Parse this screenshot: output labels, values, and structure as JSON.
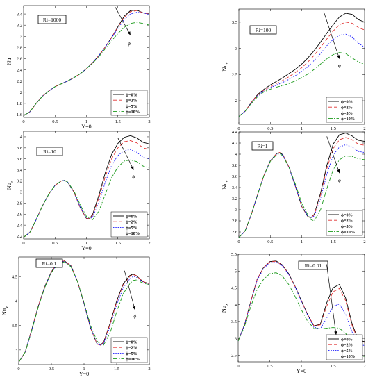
{
  "legend_labels": [
    "ϕ=0%",
    "ϕ=2%",
    "ϕ=5%",
    "ϕ=10%"
  ],
  "arrow_label": "ϕ",
  "series_styles": [
    {
      "color": "#000000",
      "dash": ""
    },
    {
      "color": "#e03030",
      "dash": "5,3"
    },
    {
      "color": "#1a1aff",
      "dash": "1.5,1.8"
    },
    {
      "color": "#1a9a1a",
      "dash": "6,2,1.5,2"
    }
  ],
  "chart_data": [
    {
      "type": "line",
      "title": "Ri=1000",
      "xlabel": "Y=0",
      "ylabel": "Nu",
      "xlim": [
        0,
        2
      ],
      "ylim": [
        1.55,
        3.55
      ],
      "xticks": [
        "0",
        "0.5",
        "1",
        "1.5",
        "2"
      ],
      "yticks": [
        "1.6",
        "1.8",
        "2",
        "2.2",
        "2.4",
        "2.6",
        "2.8",
        "3",
        "3.2",
        "3.4"
      ],
      "x": [
        0,
        0.1,
        0.2,
        0.3,
        0.4,
        0.5,
        0.6,
        0.7,
        0.8,
        0.9,
        1.0,
        1.1,
        1.2,
        1.3,
        1.4,
        1.5,
        1.6,
        1.7,
        1.8,
        1.9,
        2.0
      ],
      "series": [
        {
          "name": "ϕ=0%",
          "values": [
            1.58,
            1.65,
            1.8,
            1.93,
            2.02,
            2.1,
            2.15,
            2.2,
            2.26,
            2.33,
            2.42,
            2.53,
            2.66,
            2.81,
            2.98,
            3.17,
            3.36,
            3.46,
            3.47,
            3.42,
            3.4
          ]
        },
        {
          "name": "ϕ=2%",
          "values": [
            1.58,
            1.65,
            1.8,
            1.93,
            2.02,
            2.1,
            2.15,
            2.2,
            2.26,
            2.33,
            2.42,
            2.53,
            2.66,
            2.81,
            2.98,
            3.16,
            3.34,
            3.44,
            3.46,
            3.42,
            3.4
          ]
        },
        {
          "name": "ϕ=5%",
          "values": [
            1.58,
            1.65,
            1.8,
            1.93,
            2.02,
            2.1,
            2.15,
            2.2,
            2.26,
            2.33,
            2.42,
            2.53,
            2.66,
            2.81,
            2.97,
            3.14,
            3.3,
            3.4,
            3.43,
            3.42,
            3.39
          ]
        },
        {
          "name": "ϕ=10%",
          "values": [
            1.58,
            1.65,
            1.8,
            1.93,
            2.02,
            2.1,
            2.15,
            2.2,
            2.26,
            2.33,
            2.42,
            2.52,
            2.64,
            2.78,
            2.92,
            3.05,
            3.16,
            3.23,
            3.25,
            3.23,
            3.2
          ]
        }
      ],
      "arrow": {
        "from": [
          1.46,
          3.52
        ],
        "to": [
          1.7,
          3.02
        ],
        "label_at": [
          1.68,
          2.88
        ]
      }
    },
    {
      "type": "line",
      "title": "Ri=100",
      "xlabel": "",
      "ylabel": "Nu",
      "ylabel_sub": "x",
      "xlim": [
        0,
        2
      ],
      "ylim": [
        1.55,
        3.75
      ],
      "xticks": [
        "0",
        "0.5",
        "1",
        "1.5",
        "2"
      ],
      "yticks": [
        "2",
        "2.5",
        "3",
        "3.5"
      ],
      "x": [
        0,
        0.1,
        0.2,
        0.3,
        0.4,
        0.5,
        0.6,
        0.7,
        0.8,
        0.9,
        1.0,
        1.1,
        1.2,
        1.3,
        1.4,
        1.5,
        1.6,
        1.7,
        1.8,
        1.9,
        2.0
      ],
      "series": [
        {
          "name": "ϕ=0%",
          "values": [
            1.7,
            1.8,
            1.97,
            2.12,
            2.22,
            2.3,
            2.37,
            2.44,
            2.52,
            2.6,
            2.7,
            2.82,
            2.96,
            3.12,
            3.29,
            3.45,
            3.6,
            3.67,
            3.65,
            3.55,
            3.5
          ]
        },
        {
          "name": "ϕ=2%",
          "values": [
            1.7,
            1.8,
            1.97,
            2.11,
            2.2,
            2.27,
            2.33,
            2.39,
            2.46,
            2.54,
            2.63,
            2.74,
            2.87,
            3.02,
            3.18,
            3.33,
            3.45,
            3.5,
            3.48,
            3.4,
            3.35
          ]
        },
        {
          "name": "ϕ=5%",
          "values": [
            1.7,
            1.8,
            1.96,
            2.1,
            2.19,
            2.25,
            2.3,
            2.35,
            2.41,
            2.48,
            2.56,
            2.65,
            2.77,
            2.9,
            3.05,
            3.17,
            3.25,
            3.27,
            3.22,
            3.1,
            3.02
          ]
        },
        {
          "name": "ϕ=10%",
          "values": [
            1.7,
            1.8,
            1.95,
            2.08,
            2.17,
            2.22,
            2.26,
            2.29,
            2.33,
            2.38,
            2.44,
            2.51,
            2.6,
            2.7,
            2.8,
            2.88,
            2.92,
            2.9,
            2.82,
            2.74,
            2.7
          ]
        }
      ],
      "arrow": {
        "from": [
          1.35,
          3.7
        ],
        "to": [
          1.6,
          2.8
        ],
        "label_at": [
          1.6,
          2.68
        ]
      }
    },
    {
      "type": "line",
      "title": "Ri=10",
      "xlabel": "Y=0",
      "ylabel": "Nu",
      "ylabel_sub": "x",
      "xlim": [
        0,
        2
      ],
      "ylim": [
        2.15,
        4.1
      ],
      "xticks": [
        "0",
        "0.5",
        "1",
        "1.5",
        "2"
      ],
      "yticks": [
        "2.2",
        "2.4",
        "2.6",
        "2.8",
        "3",
        "3.2",
        "3.4",
        "3.6",
        "3.8",
        "4"
      ],
      "x": [
        0,
        0.1,
        0.2,
        0.3,
        0.4,
        0.5,
        0.6,
        0.65,
        0.7,
        0.8,
        0.9,
        1.0,
        1.05,
        1.1,
        1.2,
        1.3,
        1.4,
        1.5,
        1.6,
        1.7,
        1.8,
        1.9,
        2.0
      ],
      "series": [
        {
          "name": "ϕ=0%",
          "values": [
            2.18,
            2.27,
            2.5,
            2.75,
            2.96,
            3.12,
            3.2,
            3.21,
            3.18,
            3.0,
            2.72,
            2.52,
            2.52,
            2.6,
            2.95,
            3.35,
            3.68,
            3.88,
            3.99,
            4.02,
            3.98,
            3.9,
            3.87
          ]
        },
        {
          "name": "ϕ=2%",
          "values": [
            2.18,
            2.27,
            2.5,
            2.75,
            2.96,
            3.12,
            3.2,
            3.21,
            3.18,
            3.0,
            2.72,
            2.52,
            2.52,
            2.58,
            2.9,
            3.28,
            3.6,
            3.8,
            3.91,
            3.93,
            3.89,
            3.8,
            3.77
          ]
        },
        {
          "name": "ϕ=5%",
          "values": [
            2.18,
            2.27,
            2.5,
            2.75,
            2.96,
            3.12,
            3.2,
            3.21,
            3.18,
            3.0,
            2.73,
            2.53,
            2.51,
            2.55,
            2.82,
            3.18,
            3.48,
            3.66,
            3.75,
            3.77,
            3.72,
            3.63,
            3.6
          ]
        },
        {
          "name": "ϕ=10%",
          "values": [
            2.18,
            2.27,
            2.5,
            2.75,
            2.96,
            3.12,
            3.2,
            3.21,
            3.18,
            3.02,
            2.77,
            2.56,
            2.52,
            2.5,
            2.66,
            2.96,
            3.26,
            3.45,
            3.56,
            3.58,
            3.55,
            3.47,
            3.44
          ]
        }
      ],
      "arrow": {
        "from": [
          1.5,
          3.98
        ],
        "to": [
          1.75,
          3.4
        ],
        "label_at": [
          1.75,
          3.28
        ]
      }
    },
    {
      "type": "line",
      "title": "Ri=1",
      "xlabel": "",
      "ylabel": "Nu",
      "ylabel_sub": "x",
      "xlim": [
        0,
        2
      ],
      "ylim": [
        2.5,
        4.4
      ],
      "xticks": [
        "0",
        "0.5",
        "1",
        "1.5",
        "2"
      ],
      "yticks": [
        "2.6",
        "2.8",
        "3",
        "3.2",
        "3.4",
        "3.6",
        "3.8",
        "4",
        "4.2",
        "4.4"
      ],
      "x": [
        0,
        0.1,
        0.2,
        0.3,
        0.4,
        0.5,
        0.6,
        0.65,
        0.7,
        0.8,
        0.9,
        1.0,
        1.1,
        1.15,
        1.2,
        1.3,
        1.4,
        1.5,
        1.6,
        1.7,
        1.8,
        1.9,
        2.0
      ],
      "series": [
        {
          "name": "ϕ=0%",
          "values": [
            2.5,
            2.62,
            2.92,
            3.28,
            3.62,
            3.88,
            4.01,
            4.03,
            3.99,
            3.76,
            3.42,
            3.06,
            2.87,
            2.86,
            2.92,
            3.3,
            3.8,
            4.18,
            4.35,
            4.38,
            4.33,
            4.25,
            4.23
          ]
        },
        {
          "name": "ϕ=2%",
          "values": [
            2.5,
            2.62,
            2.92,
            3.28,
            3.62,
            3.88,
            4.01,
            4.03,
            3.99,
            3.76,
            3.42,
            3.06,
            2.87,
            2.86,
            2.91,
            3.27,
            3.74,
            4.1,
            4.26,
            4.3,
            4.26,
            4.18,
            4.16
          ]
        },
        {
          "name": "ϕ=5%",
          "values": [
            2.5,
            2.62,
            2.92,
            3.28,
            3.62,
            3.88,
            4.0,
            4.02,
            3.98,
            3.75,
            3.42,
            3.07,
            2.88,
            2.86,
            2.89,
            3.2,
            3.64,
            3.98,
            4.13,
            4.17,
            4.13,
            4.05,
            4.03
          ]
        },
        {
          "name": "ϕ=10%",
          "values": [
            2.5,
            2.62,
            2.92,
            3.28,
            3.62,
            3.87,
            3.99,
            4.01,
            3.97,
            3.76,
            3.46,
            3.12,
            2.9,
            2.82,
            2.8,
            3.0,
            3.38,
            3.72,
            3.9,
            3.97,
            3.96,
            3.92,
            3.9
          ]
        }
      ],
      "arrow": {
        "from": [
          1.4,
          4.32
        ],
        "to": [
          1.6,
          3.66
        ],
        "label_at": [
          1.6,
          3.54
        ]
      }
    },
    {
      "type": "line",
      "title": "Ri=0.1",
      "xlabel": "Y=0",
      "ylabel": "Nu",
      "ylabel_sub": "x",
      "xlim": [
        0,
        2
      ],
      "ylim": [
        2.7,
        4.9
      ],
      "xticks": [
        "0",
        "0.5",
        "1",
        "1.5",
        "2"
      ],
      "yticks": [
        "3",
        "3.5",
        "4",
        "4.5"
      ],
      "x": [
        0,
        0.1,
        0.2,
        0.3,
        0.4,
        0.5,
        0.6,
        0.7,
        0.8,
        0.9,
        1.0,
        1.1,
        1.2,
        1.25,
        1.3,
        1.4,
        1.5,
        1.6,
        1.7,
        1.75,
        1.8,
        1.9,
        2.0
      ],
      "series": [
        {
          "name": "ϕ=0%",
          "values": [
            2.75,
            2.96,
            3.42,
            3.9,
            4.3,
            4.6,
            4.78,
            4.82,
            4.72,
            4.4,
            3.95,
            3.45,
            3.12,
            3.1,
            3.16,
            3.55,
            4.0,
            4.35,
            4.52,
            4.55,
            4.52,
            4.4,
            4.35
          ]
        },
        {
          "name": "ϕ=2%",
          "values": [
            2.75,
            2.96,
            3.42,
            3.9,
            4.3,
            4.6,
            4.78,
            4.82,
            4.72,
            4.4,
            3.95,
            3.45,
            3.12,
            3.1,
            3.15,
            3.53,
            3.98,
            4.33,
            4.5,
            4.54,
            4.52,
            4.4,
            4.35
          ]
        },
        {
          "name": "ϕ=5%",
          "values": [
            2.75,
            2.96,
            3.41,
            3.89,
            4.29,
            4.59,
            4.77,
            4.81,
            4.71,
            4.4,
            3.95,
            3.46,
            3.13,
            3.1,
            3.13,
            3.48,
            3.92,
            4.27,
            4.45,
            4.5,
            4.49,
            4.39,
            4.34
          ]
        },
        {
          "name": "ϕ=10%",
          "values": [
            2.75,
            2.96,
            3.4,
            3.88,
            4.28,
            4.58,
            4.76,
            4.8,
            4.7,
            4.4,
            3.97,
            3.5,
            3.18,
            3.12,
            3.1,
            3.35,
            3.78,
            4.15,
            4.35,
            4.42,
            4.43,
            4.37,
            4.33
          ]
        }
      ],
      "arrow": {
        "from": [
          1.62,
          4.62
        ],
        "to": [
          1.78,
          3.82
        ],
        "label_at": [
          1.78,
          3.7
        ]
      }
    },
    {
      "type": "line",
      "title": "Ri=0.01",
      "xlabel": "Y=0",
      "ylabel": "Nu",
      "ylabel_sub": "x",
      "xlim": [
        0,
        2
      ],
      "ylim": [
        2.3,
        5.5
      ],
      "xticks": [
        "0",
        "0.5",
        "1",
        "1.5",
        "2"
      ],
      "yticks": [
        "2.5",
        "3",
        "3.5",
        "4",
        "4.5",
        "5",
        "5.5"
      ],
      "x": [
        0,
        0.1,
        0.2,
        0.3,
        0.4,
        0.5,
        0.6,
        0.7,
        0.8,
        0.9,
        1.0,
        1.1,
        1.2,
        1.3,
        1.4,
        1.5,
        1.6,
        1.7,
        1.8,
        1.9,
        2.0
      ],
      "series": [
        {
          "name": "ϕ=0%",
          "values": [
            2.92,
            3.4,
            4.1,
            4.75,
            5.1,
            5.28,
            5.3,
            5.18,
            4.92,
            4.55,
            4.12,
            3.7,
            3.37,
            3.42,
            4.05,
            4.5,
            4.6,
            4.2,
            3.45,
            2.95,
            2.9
          ]
        },
        {
          "name": "ϕ=2%",
          "values": [
            2.92,
            3.4,
            4.1,
            4.75,
            5.1,
            5.27,
            5.29,
            5.17,
            4.91,
            4.54,
            4.12,
            3.7,
            3.37,
            3.4,
            3.95,
            4.38,
            4.48,
            4.12,
            3.4,
            2.93,
            2.88
          ]
        },
        {
          "name": "ϕ=5%",
          "values": [
            2.92,
            3.4,
            4.08,
            4.72,
            5.07,
            5.25,
            5.27,
            5.15,
            4.9,
            4.53,
            4.1,
            3.68,
            3.33,
            3.28,
            3.6,
            3.95,
            4.02,
            3.72,
            3.2,
            2.85,
            2.78
          ]
        },
        {
          "name": "ϕ=10%",
          "values": [
            2.92,
            3.35,
            3.95,
            4.45,
            4.75,
            4.92,
            4.95,
            4.85,
            4.6,
            4.25,
            3.85,
            3.5,
            3.3,
            3.28,
            3.3,
            3.32,
            3.3,
            3.15,
            2.85,
            2.55,
            2.45
          ]
        }
      ],
      "arrow": {
        "from": [
          1.4,
          5.2
        ],
        "to": [
          1.55,
          3.1
        ],
        "label_at": [
          1.55,
          2.95
        ]
      }
    }
  ]
}
